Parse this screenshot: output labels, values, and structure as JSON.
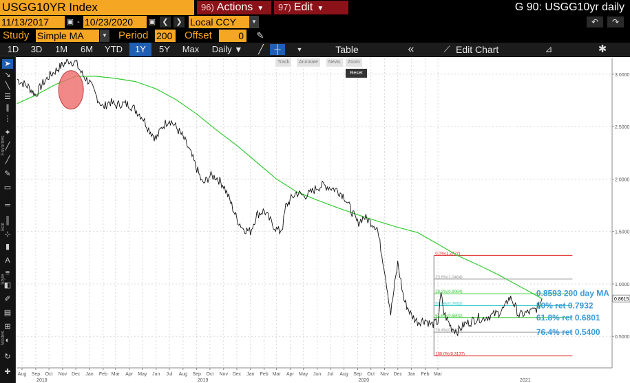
{
  "header": {
    "ticker": "USGG10YR Index",
    "actions_num": "96)",
    "actions_label": "Actions",
    "edit_num": "97)",
    "edit_label": "Edit",
    "window_title": "G 90: USGG10yr daily"
  },
  "range": {
    "start_date": "11/13/2017",
    "end_date": "10/23/2020",
    "separator": "-",
    "currency": "Local CCY"
  },
  "study": {
    "study_label": "Study",
    "study_value": "Simple MA",
    "period_label": "Period",
    "period_value": "200",
    "offset_label": "Offset",
    "offset_value": "0"
  },
  "toolbar": {
    "timeframes": [
      {
        "label": "1D",
        "active": false
      },
      {
        "label": "3D",
        "active": false
      },
      {
        "label": "1M",
        "active": false
      },
      {
        "label": "6M",
        "active": false
      },
      {
        "label": "YTD",
        "active": false
      },
      {
        "label": "1Y",
        "active": true
      },
      {
        "label": "5Y",
        "active": false
      },
      {
        "label": "Max",
        "active": false
      }
    ],
    "frequency": "Daily",
    "table_label": "Table",
    "edit_chart_label": "Edit Chart"
  },
  "mini_toolbar": {
    "track": "Track",
    "annotate": "Annotate",
    "news": "News",
    "zoom": "Zoom",
    "reset": "Reset"
  },
  "left_labels": {
    "favorites": "Favorites",
    "edit": "Edit",
    "style": "Style",
    "modes": "Modes"
  },
  "colors": {
    "accent_orange": "#f5a623",
    "menu_red": "#8b1219",
    "active_blue": "#1e5fb4",
    "price_line": "#111111",
    "ma_line": "#33cc33",
    "fib_0": "#dd2222",
    "fib_100": "#dd2222",
    "fib_382": "#33cc33",
    "fib_50": "#33cccc",
    "fib_618": "#33cc33",
    "fib_236": "#999999",
    "fib_764": "#999999",
    "annotation_text": "#3a9ad9",
    "highlight_circle": "#ee6b6b"
  },
  "chart_data": {
    "type": "line",
    "title": "",
    "xlabel": "",
    "ylabel": "",
    "y_range": [
      0.2,
      3.15
    ],
    "x_range": [
      "2017-07-21",
      "2021-03-31"
    ],
    "grid": true,
    "y_ticks": [
      "3.0000",
      "2.5000",
      "2.0000",
      "1.5000",
      "1.0000",
      "0.5000"
    ],
    "y_tick_values": [
      3.0,
      2.5,
      2.0,
      1.5,
      1.0,
      0.5
    ],
    "current_value_label": "0.8615",
    "current_value": 0.8615,
    "x_month_ticks": [
      {
        "label": "Aug",
        "date": "2017-08-01"
      },
      {
        "label": "Sep",
        "date": "2017-09-01"
      },
      {
        "label": "Oct",
        "date": "2017-10-01"
      },
      {
        "label": "Nov",
        "date": "2017-11-01"
      },
      {
        "label": "Dec",
        "date": "2017-12-01"
      },
      {
        "label": "Jan",
        "date": "2018-01-01"
      },
      {
        "label": "Feb",
        "date": "2018-02-01"
      },
      {
        "label": "Mar",
        "date": "2018-03-01"
      },
      {
        "label": "Apr",
        "date": "2018-04-01"
      },
      {
        "label": "May",
        "date": "2018-05-01"
      },
      {
        "label": "Jun",
        "date": "2018-06-01"
      },
      {
        "label": "Jul",
        "date": "2018-07-01"
      },
      {
        "label": "Aug",
        "date": "2018-08-01"
      },
      {
        "label": "Sep",
        "date": "2018-09-01"
      },
      {
        "label": "Oct",
        "date": "2018-10-01"
      },
      {
        "label": "Nov",
        "date": "2018-11-01"
      },
      {
        "label": "Dec",
        "date": "2018-12-01"
      },
      {
        "label": "Jan",
        "date": "2019-01-01"
      },
      {
        "label": "Feb",
        "date": "2019-02-01"
      },
      {
        "label": "Mar",
        "date": "2019-03-01"
      },
      {
        "label": "Apr",
        "date": "2019-04-01"
      },
      {
        "label": "May",
        "date": "2019-05-01"
      },
      {
        "label": "Jun",
        "date": "2019-06-01"
      },
      {
        "label": "Jul",
        "date": "2019-07-01"
      },
      {
        "label": "Aug",
        "date": "2019-08-01"
      },
      {
        "label": "Sep",
        "date": "2019-09-01"
      },
      {
        "label": "Oct",
        "date": "2019-10-01"
      },
      {
        "label": "Nov",
        "date": "2019-11-01"
      },
      {
        "label": "Dec",
        "date": "2019-12-01"
      },
      {
        "label": "Jan",
        "date": "2020-01-01"
      },
      {
        "label": "Feb",
        "date": "2020-02-01"
      },
      {
        "label": "Mar",
        "date": "2020-03-01"
      }
    ],
    "x_year_ticks": [
      {
        "label": "2018",
        "date": "2017-09-15"
      },
      {
        "label": "2019",
        "date": "2018-09-15"
      },
      {
        "label": "2020",
        "date": "2019-09-15"
      },
      {
        "label": "2021",
        "date": "2020-09-15"
      }
    ],
    "series": [
      {
        "name": "",
        "style": "price",
        "x": [
          "2017-07-21",
          "2017-08-01",
          "2017-08-15",
          "2017-09-01",
          "2017-09-15",
          "2017-10-01",
          "2017-10-15",
          "2017-11-01",
          "2017-11-15",
          "2017-12-01",
          "2017-12-15",
          "2018-01-01",
          "2018-01-15",
          "2018-02-01",
          "2018-02-15",
          "2018-03-01",
          "2018-03-15",
          "2018-04-01",
          "2018-04-15",
          "2018-05-01",
          "2018-05-15",
          "2018-06-01",
          "2018-06-15",
          "2018-07-01",
          "2018-07-15",
          "2018-08-01",
          "2018-08-15",
          "2018-09-01",
          "2018-09-15",
          "2018-10-01",
          "2018-10-15",
          "2018-11-01",
          "2018-11-15",
          "2018-12-01",
          "2018-12-15",
          "2019-01-01",
          "2019-01-15",
          "2019-02-01",
          "2019-02-15",
          "2019-03-01",
          "2019-03-08",
          "2019-03-15",
          "2019-03-22",
          "2019-04-01",
          "2019-04-15",
          "2019-05-01",
          "2019-05-15",
          "2019-06-01",
          "2019-06-15",
          "2019-07-01",
          "2019-07-15",
          "2019-08-01",
          "2019-08-15",
          "2019-09-01",
          "2019-09-15",
          "2019-10-01",
          "2019-10-15",
          "2019-11-01",
          "2019-11-15",
          "2019-12-01",
          "2019-12-15",
          "2020-01-01",
          "2020-01-15",
          "2020-02-01",
          "2020-02-15",
          "2020-03-01",
          "2020-03-08",
          "2020-03-15",
          "2020-03-22",
          "2020-04-01",
          "2020-04-15",
          "2020-05-01",
          "2020-05-15",
          "2020-06-01",
          "2020-06-10",
          "2020-06-15",
          "2020-07-01",
          "2020-07-15",
          "2020-08-01",
          "2020-08-07",
          "2020-08-15",
          "2020-09-01",
          "2020-09-15",
          "2020-10-01",
          "2020-10-15",
          "2020-10-23"
        ],
        "y": [
          2.95,
          2.92,
          2.88,
          2.8,
          2.9,
          2.98,
          3.03,
          3.09,
          3.13,
          3.11,
          3.0,
          2.92,
          2.8,
          2.68,
          2.74,
          2.7,
          2.72,
          2.71,
          2.66,
          2.59,
          2.48,
          2.38,
          2.5,
          2.57,
          2.5,
          2.4,
          2.28,
          2.1,
          1.95,
          2.03,
          2.02,
          1.94,
          1.8,
          1.62,
          1.53,
          1.5,
          1.66,
          1.7,
          1.6,
          1.52,
          1.5,
          1.55,
          1.74,
          1.8,
          1.87,
          1.84,
          1.86,
          1.92,
          1.94,
          1.92,
          1.9,
          1.84,
          1.72,
          1.58,
          1.64,
          1.59,
          1.54,
          1.14,
          0.72,
          1.2,
          0.85,
          0.7,
          0.64,
          0.66,
          0.61,
          0.64,
          0.9,
          0.72,
          0.66,
          0.58,
          0.55,
          0.62,
          0.64,
          0.68,
          0.66,
          0.68,
          0.7,
          0.72,
          0.78,
          0.86,
          0.86,
          0.7,
          0.72,
          0.74,
          0.78,
          0.86
        ]
      },
      {
        "name": "",
        "style": "ma",
        "x": [
          "2017-07-21",
          "2017-09-01",
          "2017-10-15",
          "2017-12-01",
          "2018-01-15",
          "2018-03-01",
          "2018-04-15",
          "2018-06-01",
          "2018-07-15",
          "2018-09-01",
          "2018-10-15",
          "2018-12-01",
          "2019-01-15",
          "2019-03-01",
          "2019-04-15",
          "2019-06-01",
          "2019-07-15",
          "2019-09-01",
          "2019-10-15",
          "2019-12-01",
          "2020-01-15",
          "2020-03-01",
          "2020-04-15",
          "2020-06-01",
          "2020-07-15",
          "2020-09-01",
          "2020-10-23"
        ],
        "y": [
          2.72,
          2.8,
          2.9,
          2.98,
          2.98,
          2.96,
          2.93,
          2.86,
          2.76,
          2.62,
          2.47,
          2.32,
          2.16,
          2.0,
          1.88,
          1.8,
          1.73,
          1.66,
          1.6,
          1.54,
          1.49,
          1.38,
          1.27,
          1.18,
          1.09,
          0.98,
          0.86
        ]
      }
    ],
    "fib_levels": [
      {
        "label": "0.0%(1.2727)",
        "value": 1.2727,
        "color_key": "fib_0"
      },
      {
        "label": "23.6%(1.0464)",
        "value": 1.0464,
        "color_key": "fib_236"
      },
      {
        "label": "38.2%(0.9064)",
        "value": 0.9064,
        "color_key": "fib_382"
      },
      {
        "label": "50.0%(0.7932)",
        "value": 0.7932,
        "color_key": "fib_50"
      },
      {
        "label": "61.8%(0.6801)",
        "value": 0.6801,
        "color_key": "fib_618"
      },
      {
        "label": "76.4%(0.5400)",
        "value": 0.54,
        "color_key": "fib_764"
      },
      {
        "label": "100.0%(0.3137)",
        "value": 0.3137,
        "color_key": "fib_100"
      }
    ],
    "annotations": [
      {
        "text": "0.8593 200 day MA",
        "value": 0.8593
      },
      {
        "text": "50% ret 0.7932",
        "value": 0.7932
      },
      {
        "text": "61.8% ret 0.6801",
        "value": 0.6801
      },
      {
        "text": "76.4% ret 0.5400",
        "value": 0.54
      }
    ],
    "highlight": {
      "date": "2017-11-20",
      "value": 2.85,
      "shape": "circle"
    }
  }
}
